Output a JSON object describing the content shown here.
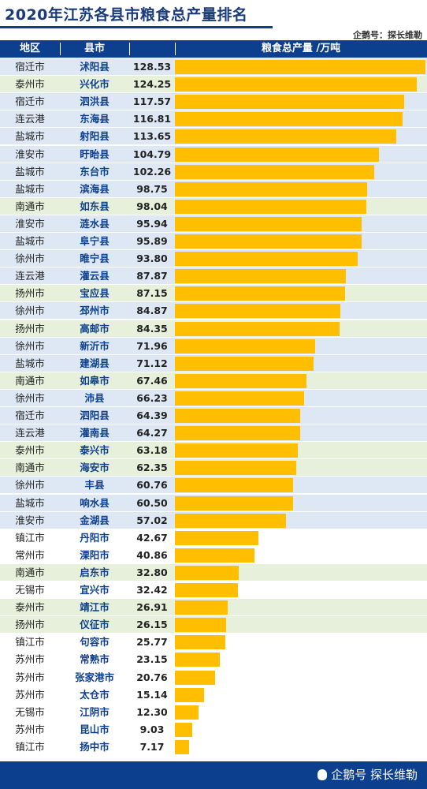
{
  "header": {
    "title": "2020年江苏各县市粮食总产量排名",
    "source": "企鹅号：探长维勒",
    "col_region": "地区",
    "col_county": "县市",
    "col_output": "粮食总产量 /万吨"
  },
  "footer": {
    "brand": "企鹅号 探长维勒",
    "icon": "penguin-icon"
  },
  "colors": {
    "header_bg": "#0d3f8f",
    "bar": "#ffbf00",
    "row_blue": "#dde8f4",
    "row_green": "#e6f0da",
    "row_white": "#ffffff"
  },
  "chart_data": {
    "type": "bar",
    "orientation": "horizontal",
    "title": "2020年江苏各县市粮食总产量排名",
    "ylabel": "粮食总产量 /万吨",
    "xlim": [
      0,
      128.53
    ],
    "rows": [
      {
        "region": "宿迁市",
        "county": "沭阳县",
        "value": 128.53,
        "shade": "blue"
      },
      {
        "region": "泰州市",
        "county": "兴化市",
        "value": 124.25,
        "shade": "green"
      },
      {
        "region": "宿迁市",
        "county": "泗洪县",
        "value": 117.57,
        "shade": "blue"
      },
      {
        "region": "连云港",
        "county": "东海县",
        "value": 116.81,
        "shade": "blue"
      },
      {
        "region": "盐城市",
        "county": "射阳县",
        "value": 113.65,
        "shade": "blue"
      },
      {
        "region": "淮安市",
        "county": "盱眙县",
        "value": 104.79,
        "shade": "blue"
      },
      {
        "region": "盐城市",
        "county": "东台市",
        "value": 102.26,
        "shade": "blue"
      },
      {
        "region": "盐城市",
        "county": "滨海县",
        "value": 98.75,
        "shade": "blue"
      },
      {
        "region": "南通市",
        "county": "如东县",
        "value": 98.04,
        "shade": "green"
      },
      {
        "region": "淮安市",
        "county": "涟水县",
        "value": 95.94,
        "shade": "blue"
      },
      {
        "region": "盐城市",
        "county": "阜宁县",
        "value": 95.89,
        "shade": "blue"
      },
      {
        "region": "徐州市",
        "county": "睢宁县",
        "value": 93.8,
        "shade": "blue"
      },
      {
        "region": "连云港",
        "county": "灌云县",
        "value": 87.87,
        "shade": "blue"
      },
      {
        "region": "扬州市",
        "county": "宝应县",
        "value": 87.15,
        "shade": "green"
      },
      {
        "region": "徐州市",
        "county": "邳州市",
        "value": 84.87,
        "shade": "blue"
      },
      {
        "region": "扬州市",
        "county": "高邮市",
        "value": 84.35,
        "shade": "green"
      },
      {
        "region": "徐州市",
        "county": "新沂市",
        "value": 71.96,
        "shade": "blue"
      },
      {
        "region": "盐城市",
        "county": "建湖县",
        "value": 71.12,
        "shade": "blue"
      },
      {
        "region": "南通市",
        "county": "如皋市",
        "value": 67.46,
        "shade": "green"
      },
      {
        "region": "徐州市",
        "county": "沛县",
        "value": 66.23,
        "shade": "blue"
      },
      {
        "region": "宿迁市",
        "county": "泗阳县",
        "value": 64.39,
        "shade": "blue"
      },
      {
        "region": "连云港",
        "county": "灌南县",
        "value": 64.27,
        "shade": "blue"
      },
      {
        "region": "泰州市",
        "county": "泰兴市",
        "value": 63.18,
        "shade": "green"
      },
      {
        "region": "南通市",
        "county": "海安市",
        "value": 62.35,
        "shade": "green"
      },
      {
        "region": "徐州市",
        "county": "丰县",
        "value": 60.76,
        "shade": "blue"
      },
      {
        "region": "盐城市",
        "county": "响水县",
        "value": 60.5,
        "shade": "blue"
      },
      {
        "region": "淮安市",
        "county": "金湖县",
        "value": 57.02,
        "shade": "blue"
      },
      {
        "region": "镇江市",
        "county": "丹阳市",
        "value": 42.67,
        "shade": "white"
      },
      {
        "region": "常州市",
        "county": "溧阳市",
        "value": 40.86,
        "shade": "white"
      },
      {
        "region": "南通市",
        "county": "启东市",
        "value": 32.8,
        "shade": "green"
      },
      {
        "region": "无锡市",
        "county": "宜兴市",
        "value": 32.42,
        "shade": "white"
      },
      {
        "region": "泰州市",
        "county": "靖江市",
        "value": 26.91,
        "shade": "green"
      },
      {
        "region": "扬州市",
        "county": "仪征市",
        "value": 26.15,
        "shade": "green"
      },
      {
        "region": "镇江市",
        "county": "句容市",
        "value": 25.77,
        "shade": "white"
      },
      {
        "region": "苏州市",
        "county": "常熟市",
        "value": 23.15,
        "shade": "white"
      },
      {
        "region": "苏州市",
        "county": "张家港市",
        "value": 20.76,
        "shade": "white"
      },
      {
        "region": "苏州市",
        "county": "太仓市",
        "value": 15.14,
        "shade": "white"
      },
      {
        "region": "无锡市",
        "county": "江阴市",
        "value": 12.3,
        "shade": "white"
      },
      {
        "region": "苏州市",
        "county": "昆山市",
        "value": 9.03,
        "shade": "white"
      },
      {
        "region": "镇江市",
        "county": "扬中市",
        "value": 7.17,
        "shade": "white"
      }
    ]
  }
}
